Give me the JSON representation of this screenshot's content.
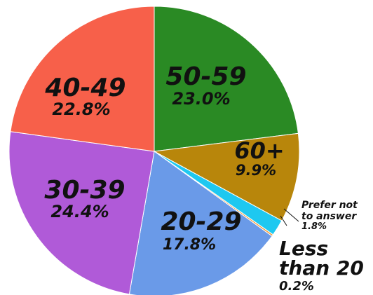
{
  "chart_data": {
    "type": "pie",
    "title": "",
    "slices": [
      {
        "label": "50-59",
        "value": 23.0,
        "display": "23.0%",
        "color": "#2a8a24"
      },
      {
        "label": "60+",
        "value": 9.9,
        "display": "9.9%",
        "color": "#b8860b"
      },
      {
        "label": "Prefer not to answer",
        "value": 1.8,
        "display": "1.8%",
        "color": "#1ec8f0"
      },
      {
        "label": "Less than 20",
        "value": 0.2,
        "display": "0.2%",
        "color": "#f09a3c"
      },
      {
        "label": "20-29",
        "value": 17.8,
        "display": "17.8%",
        "color": "#6a9ae8"
      },
      {
        "label": "30-39",
        "value": 24.4,
        "display": "24.4%",
        "color": "#b05ad8"
      },
      {
        "label": "40-49",
        "value": 22.8,
        "display": "22.8%",
        "color": "#f7604a"
      }
    ],
    "legend": "none"
  }
}
